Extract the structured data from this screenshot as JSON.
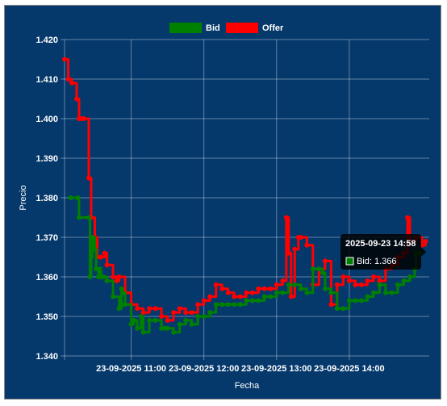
{
  "chart_data": {
    "type": "line",
    "xlabel": "Fecha",
    "ylabel": "Precio",
    "ylim": [
      1.34,
      1.42
    ],
    "y_ticks": [
      "1.340",
      "1.350",
      "1.360",
      "1.370",
      "1.380",
      "1.390",
      "1.400",
      "1.410",
      "1.420"
    ],
    "x_range": [
      "10:05",
      "15:06"
    ],
    "x_ticks": [
      {
        "time": "11:00",
        "label": "23-09-2025 11:00"
      },
      {
        "time": "12:00",
        "label": "23-09-2025 12:00"
      },
      {
        "time": "13:00",
        "label": "23-09-2025 13:00"
      },
      {
        "time": "14:00",
        "label": "23-09-2025 14:00"
      }
    ],
    "grid": true,
    "legend_position": "top-center",
    "series": [
      {
        "name": "Bid",
        "color": "#008000",
        "x": [
          "10:10",
          "10:16",
          "10:17",
          "10:25",
          "10:26",
          "10:27",
          "10:28",
          "10:30",
          "10:31",
          "10:33",
          "10:34",
          "10:35",
          "10:37",
          "10:40",
          "10:45",
          "10:50",
          "10:52",
          "10:53",
          "10:55",
          "11:00",
          "11:02",
          "11:05",
          "11:08",
          "11:10",
          "11:15",
          "11:20",
          "11:25",
          "11:28",
          "11:30",
          "11:35",
          "11:40",
          "11:45",
          "11:50",
          "11:55",
          "12:00",
          "12:05",
          "12:10",
          "12:15",
          "12:20",
          "12:25",
          "12:30",
          "12:35",
          "12:40",
          "12:45",
          "12:50",
          "12:55",
          "13:00",
          "13:05",
          "13:10",
          "13:15",
          "13:20",
          "13:25",
          "13:30",
          "13:35",
          "13:38",
          "13:40",
          "13:45",
          "13:50",
          "13:55",
          "14:00",
          "14:05",
          "14:10",
          "14:15",
          "14:20",
          "14:25",
          "14:30",
          "14:35",
          "14:40",
          "14:45",
          "14:50",
          "14:54",
          "14:55",
          "14:58"
        ],
        "values": [
          1.38,
          1.38,
          1.375,
          1.375,
          1.36,
          1.365,
          1.37,
          1.367,
          1.362,
          1.36,
          1.362,
          1.36,
          1.36,
          1.359,
          1.355,
          1.352,
          1.357,
          1.356,
          1.353,
          1.348,
          1.349,
          1.347,
          1.35,
          1.346,
          1.349,
          1.349,
          1.347,
          1.347,
          1.347,
          1.346,
          1.348,
          1.349,
          1.348,
          1.35,
          1.35,
          1.351,
          1.353,
          1.353,
          1.353,
          1.353,
          1.353,
          1.354,
          1.354,
          1.354,
          1.355,
          1.355,
          1.356,
          1.356,
          1.358,
          1.358,
          1.357,
          1.356,
          1.362,
          1.362,
          1.361,
          1.357,
          1.356,
          1.352,
          1.352,
          1.354,
          1.354,
          1.354,
          1.355,
          1.356,
          1.358,
          1.356,
          1.356,
          1.358,
          1.359,
          1.36,
          1.362,
          1.366,
          1.366
        ]
      },
      {
        "name": "Offer",
        "color": "#ff0000",
        "x": [
          "10:05",
          "10:08",
          "10:11",
          "10:15",
          "10:17",
          "10:19",
          "10:21",
          "10:25",
          "10:27",
          "10:30",
          "10:32",
          "10:35",
          "10:38",
          "10:40",
          "10:45",
          "10:48",
          "10:50",
          "10:55",
          "11:00",
          "11:05",
          "11:10",
          "11:15",
          "11:20",
          "11:25",
          "11:30",
          "11:35",
          "11:40",
          "11:45",
          "11:50",
          "11:55",
          "12:00",
          "12:05",
          "12:10",
          "12:15",
          "12:20",
          "12:25",
          "12:30",
          "12:35",
          "12:40",
          "12:45",
          "12:50",
          "12:55",
          "13:00",
          "13:05",
          "13:08",
          "13:10",
          "13:12",
          "13:15",
          "13:18",
          "13:20",
          "13:25",
          "13:30",
          "13:35",
          "13:40",
          "13:45",
          "13:50",
          "13:55",
          "14:00",
          "14:05",
          "14:10",
          "14:15",
          "14:20",
          "14:25",
          "14:30",
          "14:35",
          "14:40",
          "14:45",
          "14:48",
          "14:50",
          "14:55",
          "15:00",
          "15:03"
        ],
        "values": [
          1.415,
          1.41,
          1.409,
          1.405,
          1.4,
          1.4,
          1.4,
          1.385,
          1.375,
          1.37,
          1.365,
          1.365,
          1.366,
          1.363,
          1.36,
          1.359,
          1.36,
          1.356,
          1.353,
          1.352,
          1.351,
          1.352,
          1.352,
          1.35,
          1.349,
          1.351,
          1.352,
          1.351,
          1.351,
          1.353,
          1.354,
          1.355,
          1.358,
          1.357,
          1.356,
          1.355,
          1.355,
          1.356,
          1.356,
          1.357,
          1.357,
          1.357,
          1.358,
          1.359,
          1.375,
          1.366,
          1.355,
          1.367,
          1.37,
          1.37,
          1.368,
          1.358,
          1.362,
          1.364,
          1.353,
          1.358,
          1.36,
          1.359,
          1.358,
          1.358,
          1.359,
          1.36,
          1.359,
          1.362,
          1.363,
          1.365,
          1.366,
          1.375,
          1.369,
          1.37,
          1.368,
          1.369
        ]
      }
    ],
    "tooltip": {
      "title": "2025-09-23 14:58",
      "series": "Bid",
      "text": "Bid: 1.366"
    }
  }
}
